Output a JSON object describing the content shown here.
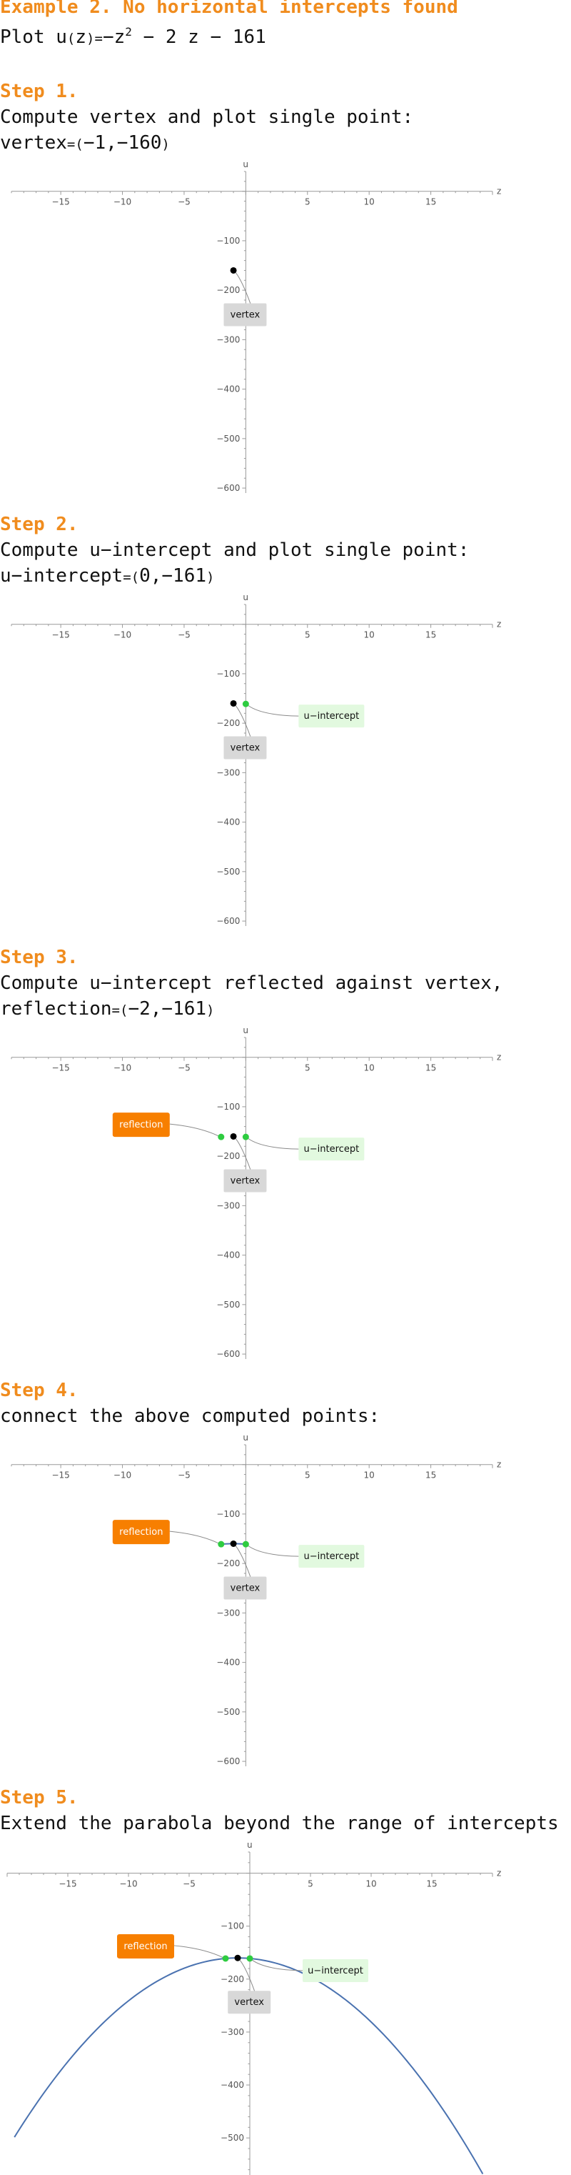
{
  "title": "Example 2. No horizontal intercepts found",
  "intro": {
    "prefix": "Plot u",
    "mid": "=",
    "minus1": "−z",
    "exp": "2",
    "rest": "− 2 z − 161",
    "lp": "(",
    "rp": ")",
    "var": "z"
  },
  "steps": [
    {
      "label": "Step 1.",
      "lines": [
        "Compute vertex and plot single point:"
      ],
      "formula": {
        "name": "vertex",
        "eq": "=",
        "lp": "(",
        "a": "−1",
        "comma": ",",
        "b": "−160",
        "rp": ")"
      }
    },
    {
      "label": "Step 2.",
      "lines": [
        "Compute u−intercept and plot single point:"
      ],
      "formula": {
        "name": "u−intercept",
        "eq": "=",
        "lp": "(",
        "a": "0",
        "comma": ",",
        "b": "−161",
        "rp": ")"
      }
    },
    {
      "label": "Step 3.",
      "lines": [
        "Compute u−intercept reflected against vertex,"
      ],
      "formula": {
        "name": "reflection",
        "eq": "=",
        "lp": "(",
        "a": "−2",
        "comma": ",",
        "b": "−161",
        "rp": ")"
      }
    },
    {
      "label": "Step 4.",
      "lines": [
        "connect the above computed points:"
      ]
    },
    {
      "label": "Step 5.",
      "lines": [
        "Extend the parabola beyond the range of intercepts"
      ]
    }
  ],
  "plot_labels": {
    "vertex": "vertex",
    "intercept": "u−intercept",
    "reflection": "reflection"
  },
  "colors": {
    "heading": "#f08c1e",
    "curve": "#4a72b0",
    "green_point": "#2ecc40",
    "vertex_box": "#d8d8d8",
    "intercept_box": "#e2f9df",
    "reflection_box": "#f77f00"
  },
  "chart_data": [
    {
      "type": "scatter",
      "title": "Step 1",
      "xlabel": "z",
      "ylabel": "u",
      "xlim": [
        -19,
        20
      ],
      "ylim": [
        -610,
        40
      ],
      "xticks": [
        "−15",
        "−10",
        "−5",
        "5",
        "10",
        "15"
      ],
      "yticks": [
        "−100",
        "−200",
        "−300",
        "−400",
        "−500",
        "−600"
      ],
      "points": [
        {
          "name": "vertex",
          "x": -1,
          "y": -160
        }
      ],
      "curve": null
    },
    {
      "type": "scatter",
      "title": "Step 2",
      "xlabel": "z",
      "ylabel": "u",
      "xlim": [
        -19,
        20
      ],
      "ylim": [
        -610,
        40
      ],
      "xticks": [
        "−15",
        "−10",
        "−5",
        "5",
        "10",
        "15"
      ],
      "yticks": [
        "−100",
        "−200",
        "−300",
        "−400",
        "−500",
        "−600"
      ],
      "points": [
        {
          "name": "vertex",
          "x": -1,
          "y": -160
        },
        {
          "name": "u−intercept",
          "x": 0,
          "y": -161
        }
      ],
      "curve": null
    },
    {
      "type": "scatter",
      "title": "Step 3",
      "xlabel": "z",
      "ylabel": "u",
      "xlim": [
        -19,
        20
      ],
      "ylim": [
        -610,
        40
      ],
      "xticks": [
        "−15",
        "−10",
        "−5",
        "5",
        "10",
        "15"
      ],
      "yticks": [
        "−100",
        "−200",
        "−300",
        "−400",
        "−500",
        "−600"
      ],
      "points": [
        {
          "name": "vertex",
          "x": -1,
          "y": -160
        },
        {
          "name": "u−intercept",
          "x": 0,
          "y": -161
        },
        {
          "name": "reflection",
          "x": -2,
          "y": -161
        }
      ],
      "curve": null
    },
    {
      "type": "line",
      "title": "Step 4",
      "xlabel": "z",
      "ylabel": "u",
      "xlim": [
        -19,
        20
      ],
      "ylim": [
        -610,
        40
      ],
      "xticks": [
        "−15",
        "−10",
        "−5",
        "5",
        "10",
        "15"
      ],
      "yticks": [
        "−100",
        "−200",
        "−300",
        "−400",
        "−500",
        "−600"
      ],
      "points": [
        {
          "name": "vertex",
          "x": -1,
          "y": -160
        },
        {
          "name": "u−intercept",
          "x": 0,
          "y": -161
        },
        {
          "name": "reflection",
          "x": -2,
          "y": -161
        }
      ],
      "curve": {
        "x_from": -2,
        "x_to": 0
      }
    },
    {
      "type": "line",
      "title": "Step 5",
      "xlabel": "z",
      "ylabel": "u",
      "xlim": [
        -20,
        20
      ],
      "ylim": [
        -570,
        40
      ],
      "xticks": [
        "−15",
        "−10",
        "−5",
        "5",
        "10",
        "15"
      ],
      "yticks": [
        "−100",
        "−200",
        "−300",
        "−400",
        "−500"
      ],
      "points": [
        {
          "name": "vertex",
          "x": -1,
          "y": -160
        },
        {
          "name": "u−intercept",
          "x": 0,
          "y": -161
        },
        {
          "name": "reflection",
          "x": -2,
          "y": -161
        }
      ],
      "curve": {
        "x_from": -19.4,
        "x_to": 19.2
      }
    }
  ]
}
